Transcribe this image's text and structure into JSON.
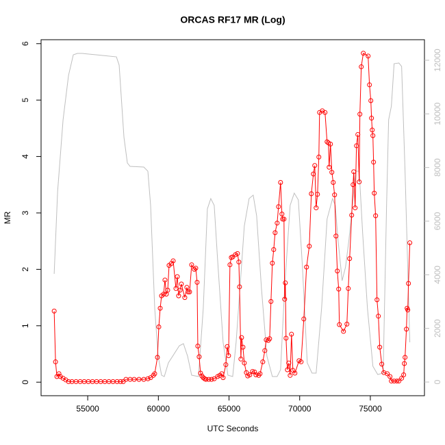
{
  "chart_data": {
    "type": "line",
    "title": "ORCAS RF17 MR (Log)",
    "x_label": "UTC Seconds",
    "y_label": "MR",
    "xlim": [
      51700,
      78830
    ],
    "ylim": [
      -0.24,
      6.07
    ],
    "y2lim": [
      -510,
      12766
    ],
    "xticks": [
      55000,
      60000,
      65000,
      70000,
      75000
    ],
    "yticks": [
      0,
      1,
      2,
      3,
      4,
      5,
      6
    ],
    "y2ticks": [
      0,
      2000,
      4000,
      6000,
      8000,
      10000,
      12000
    ],
    "y2_color": "#bebebe",
    "series": [
      {
        "color": "#ff0000",
        "markers": true,
        "x": [
          52627,
          52723,
          52820,
          52965,
          53062,
          53256,
          53449,
          53643,
          53885,
          54175,
          54466,
          54756,
          55047,
          55337,
          55627,
          55918,
          56208,
          56499,
          56789,
          57079,
          57321,
          57515,
          57709,
          57999,
          58289,
          58628,
          58967,
          59257,
          59451,
          59645,
          59741,
          59935,
          60032,
          60129,
          60225,
          60371,
          60467,
          60564,
          60661,
          60758,
          60903,
          61048,
          61242,
          61339,
          61435,
          61532,
          61629,
          61871,
          62016,
          62113,
          62210,
          62355,
          62549,
          62646,
          62742,
          62791,
          62887,
          62984,
          63081,
          63178,
          63275,
          63371,
          63565,
          63759,
          63952,
          64194,
          64339,
          64485,
          64582,
          64775,
          64872,
          64969,
          65065,
          65162,
          65259,
          65453,
          65598,
          65695,
          65743,
          65840,
          65888,
          65985,
          66082,
          66227,
          66324,
          66469,
          66663,
          66808,
          66905,
          67098,
          67195,
          67389,
          67534,
          67631,
          67776,
          67873,
          67969,
          68066,
          68163,
          68260,
          68405,
          68502,
          68647,
          68744,
          68792,
          68889,
          68937,
          68986,
          69034,
          69131,
          69228,
          69325,
          69421,
          69518,
          69663,
          69954,
          70099,
          70293,
          70486,
          70680,
          70825,
          70970,
          71067,
          71164,
          71261,
          71357,
          71406,
          71600,
          71793,
          71938,
          72035,
          72083,
          72180,
          72277,
          72374,
          72471,
          72567,
          72664,
          72761,
          72809,
          73100,
          73342,
          73439,
          73535,
          73681,
          73777,
          73826,
          73923,
          74019,
          74116,
          74213,
          74261,
          74358,
          74503,
          74842,
          74939,
          75036,
          75084,
          75133,
          75181,
          75229,
          75277,
          75374,
          75471,
          75568,
          75665,
          75810,
          75955,
          76197,
          76391,
          76488,
          76681,
          76875,
          77020,
          77214,
          77359,
          77407,
          77456,
          77553,
          77601,
          77649,
          77698,
          77794
        ],
        "values": [
          1.26,
          0.36,
          0.1,
          0.15,
          0.1,
          0.07,
          0.04,
          0.01,
          0.01,
          0.01,
          0.01,
          0.01,
          0.01,
          0.01,
          0.01,
          0.01,
          0.01,
          0.01,
          0.01,
          0.01,
          0.01,
          0.01,
          0.05,
          0.05,
          0.05,
          0.05,
          0.05,
          0.06,
          0.08,
          0.12,
          0.15,
          0.44,
          0.98,
          1.31,
          1.53,
          1.56,
          1.81,
          1.56,
          1.63,
          2.07,
          2.1,
          2.15,
          1.66,
          1.87,
          1.53,
          1.63,
          1.74,
          1.5,
          1.68,
          1.6,
          1.6,
          2.08,
          2.0,
          2.02,
          1.77,
          0.64,
          0.45,
          0.16,
          0.11,
          0.08,
          0.06,
          0.05,
          0.05,
          0.05,
          0.06,
          0.1,
          0.12,
          0.15,
          0.08,
          0.31,
          0.63,
          0.47,
          2.08,
          2.21,
          2.22,
          2.26,
          2.28,
          2.13,
          1.69,
          0.41,
          0.79,
          0.62,
          0.34,
          0.17,
          0.11,
          0.13,
          0.19,
          0.18,
          0.13,
          0.12,
          0.15,
          0.36,
          0.56,
          0.75,
          0.74,
          0.77,
          1.43,
          2.11,
          2.35,
          2.65,
          2.82,
          3.11,
          3.54,
          2.98,
          2.89,
          2.89,
          1.47,
          1.76,
          0.78,
          0.22,
          0.34,
          0.12,
          0.85,
          0.21,
          0.16,
          0.38,
          0.36,
          1.12,
          2.04,
          2.41,
          3.34,
          3.69,
          3.84,
          3.09,
          3.33,
          3.99,
          4.78,
          4.81,
          4.78,
          4.26,
          4.24,
          3.81,
          4.22,
          3.72,
          3.54,
          3.32,
          2.59,
          1.97,
          1.65,
          1.02,
          0.9,
          1.03,
          1.66,
          2.19,
          2.96,
          3.5,
          3.73,
          3.09,
          4.19,
          4.39,
          3.55,
          4.75,
          5.59,
          5.83,
          5.78,
          5.27,
          4.99,
          4.68,
          4.47,
          4.37,
          3.9,
          3.35,
          2.95,
          1.46,
          1.17,
          0.62,
          0.32,
          0.17,
          0.15,
          0.1,
          0.02,
          0.02,
          0.02,
          0.02,
          0.07,
          0.13,
          0.33,
          0.44,
          0.94,
          1.31,
          1.28,
          1.75,
          2.47
        ]
      },
      {
        "color": "#bebebe",
        "axis": "y2",
        "markers": false,
        "x": [
          52627,
          52869,
          53256,
          53643,
          53982,
          54272,
          54611,
          55579,
          57031,
          57225,
          57563,
          57805,
          57999,
          58967,
          59257,
          59451,
          59741,
          59983,
          60225,
          60419,
          60709,
          61484,
          61774,
          62065,
          62355,
          62839,
          63178,
          63468,
          63710,
          63952,
          64194,
          64582,
          64921,
          65259,
          65501,
          65743,
          66082,
          66420,
          66711,
          66953,
          67291,
          67679,
          68066,
          68405,
          68647,
          68937,
          69325,
          69615,
          69905,
          70196,
          70535,
          70873,
          71164,
          71551,
          71938,
          72326,
          72519,
          72713,
          73003,
          73245,
          73487,
          73729,
          73971,
          74213,
          74455,
          74794,
          75181,
          75520,
          75907,
          76149,
          76294,
          76488,
          76681,
          77020,
          77214,
          77456,
          77794
        ],
        "values": [
          4034,
          7097,
          9778,
          11437,
          12203,
          12254,
          12254,
          12203,
          12127,
          11820,
          9140,
          8169,
          8042,
          8016,
          7863,
          6587,
          2757,
          970,
          255,
          204,
          715,
          1353,
          1430,
          970,
          255,
          204,
          2757,
          6459,
          6842,
          6587,
          4544,
          1481,
          255,
          204,
          1481,
          3268,
          5821,
          6842,
          6970,
          6204,
          3523,
          970,
          204,
          204,
          460,
          3523,
          6587,
          7046,
          6791,
          4289,
          715,
          332,
          332,
          2757,
          6076,
          6842,
          6587,
          5310,
          3778,
          4289,
          5310,
          6587,
          7863,
          7863,
          5565,
          2757,
          587,
          281,
          332,
          6587,
          9778,
          10288,
          11871,
          11897,
          11769,
          7863,
          1481
        ]
      }
    ]
  }
}
